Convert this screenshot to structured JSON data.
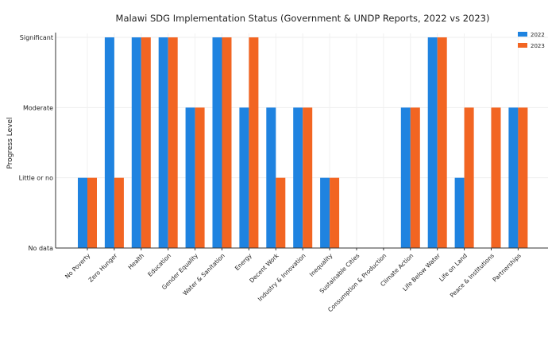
{
  "chart_data": {
    "type": "bar",
    "title": "Malawi SDG Implementation Status (Government & UNDP Reports, 2022 vs 2023)",
    "xlabel": "",
    "ylabel": "Progress Level",
    "categories": [
      "No Poverty",
      "Zero Hunger",
      "Health",
      "Education",
      "Gender Equality",
      "Water & Sanitation",
      "Energy",
      "Decent Work",
      "Industry & Innovation",
      "Inequality",
      "Sustainable Cities",
      "Consumption & Production",
      "Climate Action",
      "Life Below Water",
      "Life on Land",
      "Peace & Institutions",
      "Partnerships"
    ],
    "y_ticks": [
      {
        "value": 0,
        "label": "No data"
      },
      {
        "value": 1,
        "label": "Little or no"
      },
      {
        "value": 2,
        "label": "Moderate"
      },
      {
        "value": 3,
        "label": "Significant"
      }
    ],
    "ylim": [
      0,
      3
    ],
    "grid": true,
    "legend_position": "top-right",
    "series": [
      {
        "name": "2022",
        "color": "#1f83e0",
        "values": [
          1,
          3,
          3,
          3,
          2,
          3,
          2,
          2,
          2,
          1,
          0,
          0,
          2,
          3,
          1,
          0,
          2
        ]
      },
      {
        "name": "2023",
        "color": "#f26522",
        "values": [
          1,
          1,
          3,
          3,
          2,
          3,
          3,
          1,
          2,
          1,
          0,
          0,
          2,
          3,
          2,
          2,
          2
        ]
      }
    ]
  }
}
